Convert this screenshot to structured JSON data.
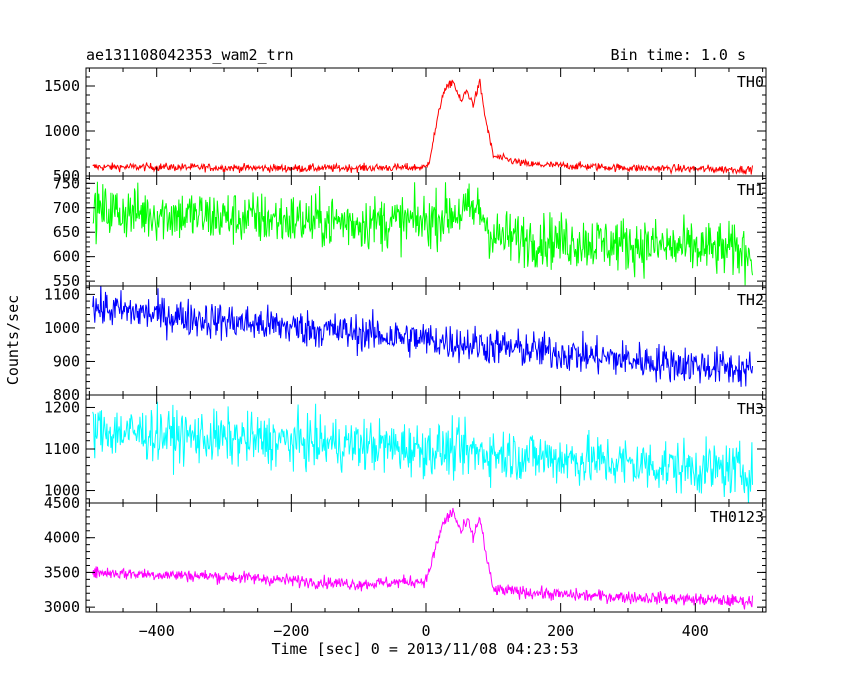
{
  "chart_data": {
    "type": "line",
    "title": "ae131108042353_wam2_trn",
    "bin_time_label": "Bin time: 1.0 s",
    "xlabel": "Time [sec] 0 = 2013/11/08 04:23:53",
    "ylabel": "Counts/sec",
    "xlim": [
      -505,
      505
    ],
    "x_ticks": [
      -400,
      -200,
      0,
      200,
      400
    ],
    "x_tick_labels": [
      "−400",
      "−200",
      "0",
      "200",
      "400"
    ],
    "x_range": [
      -495,
      485
    ],
    "panels": [
      {
        "name": "TH0",
        "color": "#ff0000",
        "ylim": [
          500,
          1700
        ],
        "y_ticks": [
          500,
          1000,
          1500
        ],
        "y_tick_labels": [
          "500",
          "1000",
          "1500"
        ],
        "profile": [
          [
            -495,
            600
          ],
          [
            -400,
            600
          ],
          [
            -200,
            585
          ],
          [
            0,
            595
          ],
          [
            5,
            680
          ],
          [
            15,
            1050
          ],
          [
            25,
            1420
          ],
          [
            40,
            1560
          ],
          [
            52,
            1320
          ],
          [
            60,
            1450
          ],
          [
            70,
            1300
          ],
          [
            80,
            1540
          ],
          [
            88,
            1150
          ],
          [
            100,
            720
          ],
          [
            150,
            630
          ],
          [
            300,
            590
          ],
          [
            485,
            570
          ]
        ],
        "noise": 22
      },
      {
        "name": "TH1",
        "color": "#00ff00",
        "ylim": [
          540,
          765
        ],
        "y_ticks": [
          550,
          600,
          650,
          700,
          750
        ],
        "y_tick_labels": [
          "550",
          "600",
          "650",
          "700",
          "750"
        ],
        "profile": [
          [
            -495,
            695
          ],
          [
            -300,
            680
          ],
          [
            -100,
            670
          ],
          [
            0,
            672
          ],
          [
            40,
            690
          ],
          [
            80,
            695
          ],
          [
            100,
            640
          ],
          [
            300,
            625
          ],
          [
            485,
            610
          ]
        ],
        "noise": 28
      },
      {
        "name": "TH2",
        "color": "#0000ff",
        "ylim": [
          800,
          1125
        ],
        "y_ticks": [
          800,
          900,
          1000,
          1100
        ],
        "y_tick_labels": [
          "800",
          "900",
          "1000",
          "1100"
        ],
        "profile": [
          [
            -495,
            1060
          ],
          [
            -300,
            1020
          ],
          [
            -100,
            985
          ],
          [
            100,
            945
          ],
          [
            300,
            905
          ],
          [
            485,
            875
          ]
        ],
        "noise": 28
      },
      {
        "name": "TH3",
        "color": "#00ffff",
        "ylim": [
          970,
          1230
        ],
        "y_ticks": [
          1000,
          1100,
          1200
        ],
        "y_tick_labels": [
          "1000",
          "1100",
          "1200"
        ],
        "profile": [
          [
            -495,
            1145
          ],
          [
            -300,
            1125
          ],
          [
            -100,
            1110
          ],
          [
            100,
            1090
          ],
          [
            300,
            1065
          ],
          [
            485,
            1045
          ]
        ],
        "noise": 32
      },
      {
        "name": "TH0123",
        "color": "#ff00ff",
        "ylim": [
          2930,
          4500
        ],
        "y_ticks": [
          3000,
          3500,
          4000,
          4500
        ],
        "y_tick_labels": [
          "3000",
          "3500",
          "4000",
          "4500"
        ],
        "profile": [
          [
            -495,
            3500
          ],
          [
            -300,
            3440
          ],
          [
            -100,
            3330
          ],
          [
            0,
            3380
          ],
          [
            10,
            3700
          ],
          [
            25,
            4200
          ],
          [
            40,
            4380
          ],
          [
            52,
            4080
          ],
          [
            62,
            4240
          ],
          [
            70,
            4000
          ],
          [
            80,
            4300
          ],
          [
            90,
            3700
          ],
          [
            100,
            3250
          ],
          [
            200,
            3180
          ],
          [
            485,
            3080
          ]
        ],
        "noise": 45
      }
    ],
    "grid": false,
    "legend": "none"
  }
}
